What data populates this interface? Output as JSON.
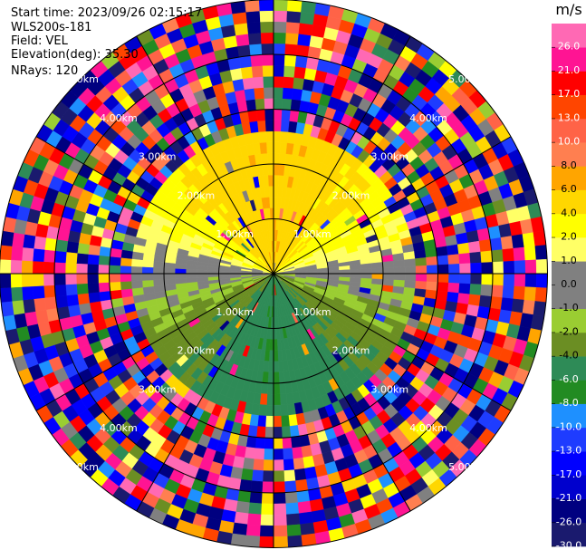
{
  "chart_data": {
    "type": "ppi",
    "title": "",
    "info": {
      "start_time": "Start time: 2023/09/26 02:15:17",
      "instrument": "WLS200s-181",
      "field": "Field: VEL",
      "elevation": "Elevation(deg): 35.30",
      "nrays": "NRays: 120"
    },
    "nrays": 120,
    "range_rings_km": [
      1,
      2,
      3,
      4,
      5
    ],
    "ring_labels": [
      "1.00km",
      "2.00km",
      "3.00km",
      "4.00km",
      "5.00km"
    ],
    "colorbar": {
      "unit": "m/s",
      "boundaries": [
        -30,
        -26,
        -21,
        -17,
        -13,
        -10,
        -8,
        -6,
        -4,
        -2,
        -1,
        0,
        1,
        2,
        4,
        6,
        8,
        10,
        13,
        17,
        21,
        26,
        30
      ],
      "tick_labels": [
        "26.0",
        "21.0",
        "17.0",
        "13.0",
        "10.0",
        "8.0",
        "6.0",
        "4.0",
        "2.0",
        "1.0",
        "0.0",
        "-1.0",
        "-2.0",
        "-4.0",
        "-6.0",
        "-8.0",
        "-10.0",
        "-13.0",
        "-17.0",
        "-21.0",
        "-26.0",
        "-30.0"
      ],
      "colors": [
        "#1a1a6e",
        "#000080",
        "#0000cd",
        "#0000ff",
        "#1e3cff",
        "#1e90ff",
        "#228b22",
        "#2e8b57",
        "#6b8e23",
        "#9acd32",
        "#808080",
        "#808080",
        "#ffff66",
        "#ffff00",
        "#ffd700",
        "#ffa500",
        "#ff7f50",
        "#ff6347",
        "#ff4500",
        "#ff0000",
        "#ff1493",
        "#ff69b4"
      ]
    },
    "field_description_near": "radial velocity: positive (yellow/orange) to the north, negative (green) to the south, near-zero (grey) along east-west, noisy beyond ~2.6 km"
  }
}
